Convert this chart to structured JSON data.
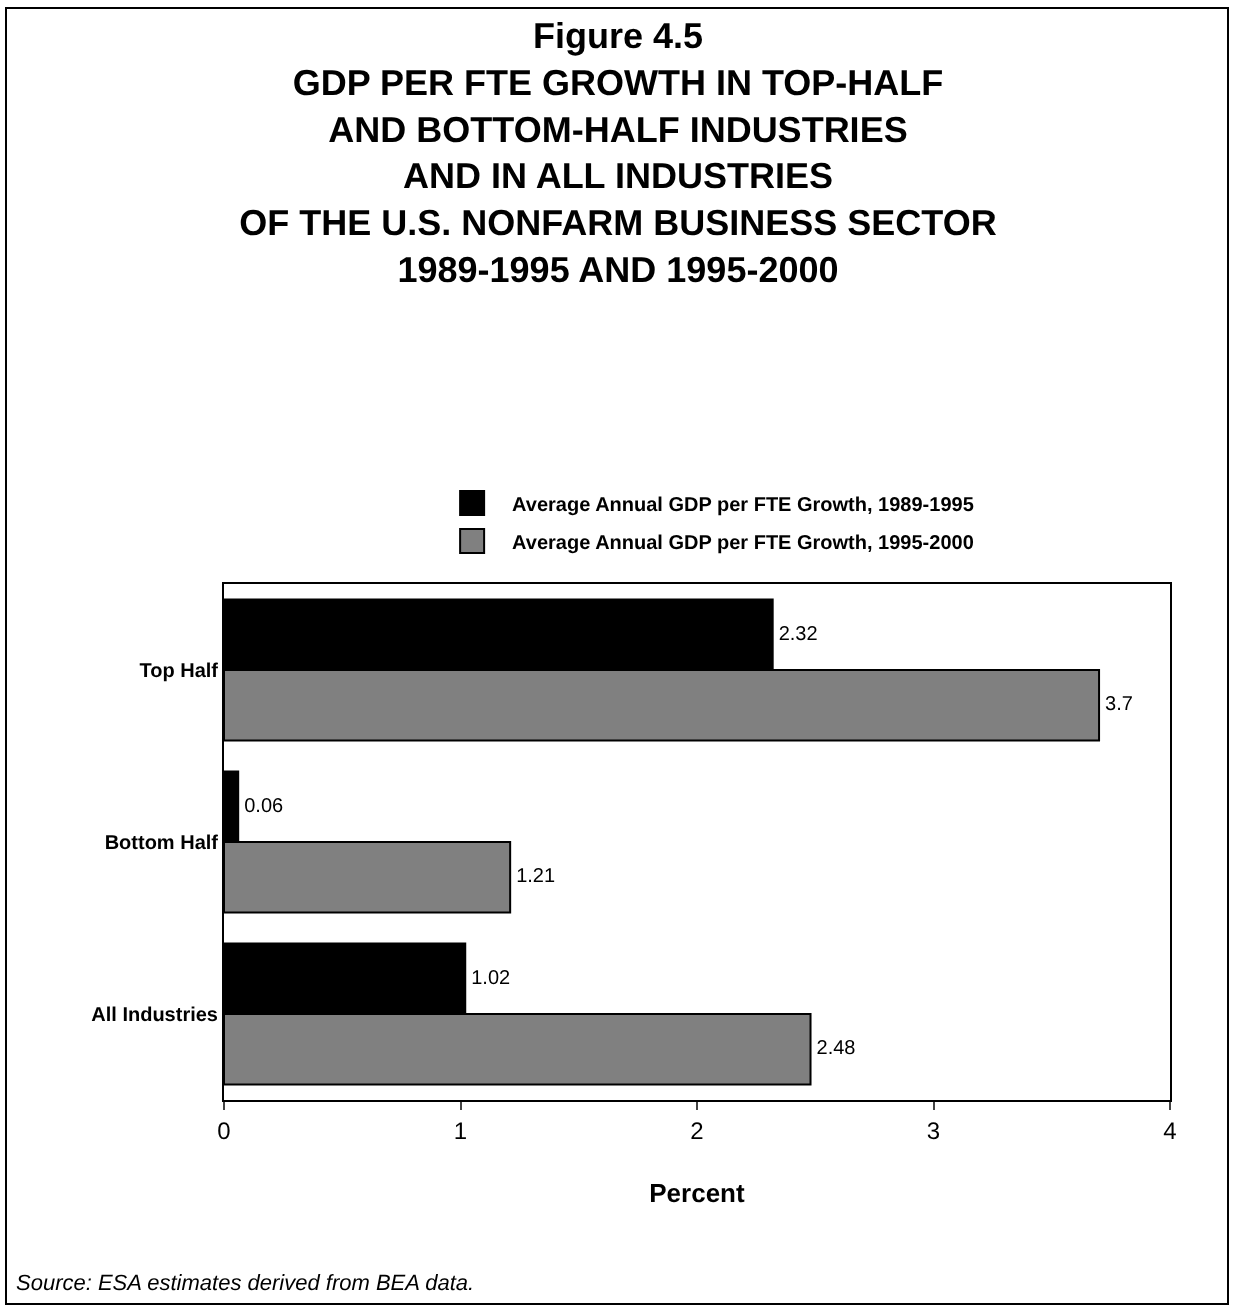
{
  "chart_data": {
    "type": "bar",
    "orientation": "horizontal",
    "title": "Figure 4.5",
    "subtitle": "GDP PER FTE GROWTH IN TOP-HALF\nAND BOTTOM-HALF INDUSTRIES\nAND IN ALL INDUSTRIES\nOF THE U.S. NONFARM BUSINESS SECTOR\n1989-1995 AND 1995-2000",
    "xlabel": "Percent",
    "categories": [
      "Top Half",
      "Bottom Half",
      "All Industries"
    ],
    "series": [
      {
        "name": "Average Annual GDP per FTE Growth, 1989-1995",
        "color": "#000000",
        "values": [
          2.32,
          0.06,
          1.02
        ]
      },
      {
        "name": "Average Annual GDP per FTE Growth, 1995-2000",
        "color": "#808080",
        "values": [
          3.7,
          1.21,
          2.48
        ]
      }
    ],
    "xlim": [
      0,
      4
    ],
    "xticks": [
      0,
      1,
      2,
      3,
      4
    ],
    "legend": "top",
    "data_labels": true,
    "annotations": [
      "Source: ESA estimates derived from BEA data."
    ]
  }
}
